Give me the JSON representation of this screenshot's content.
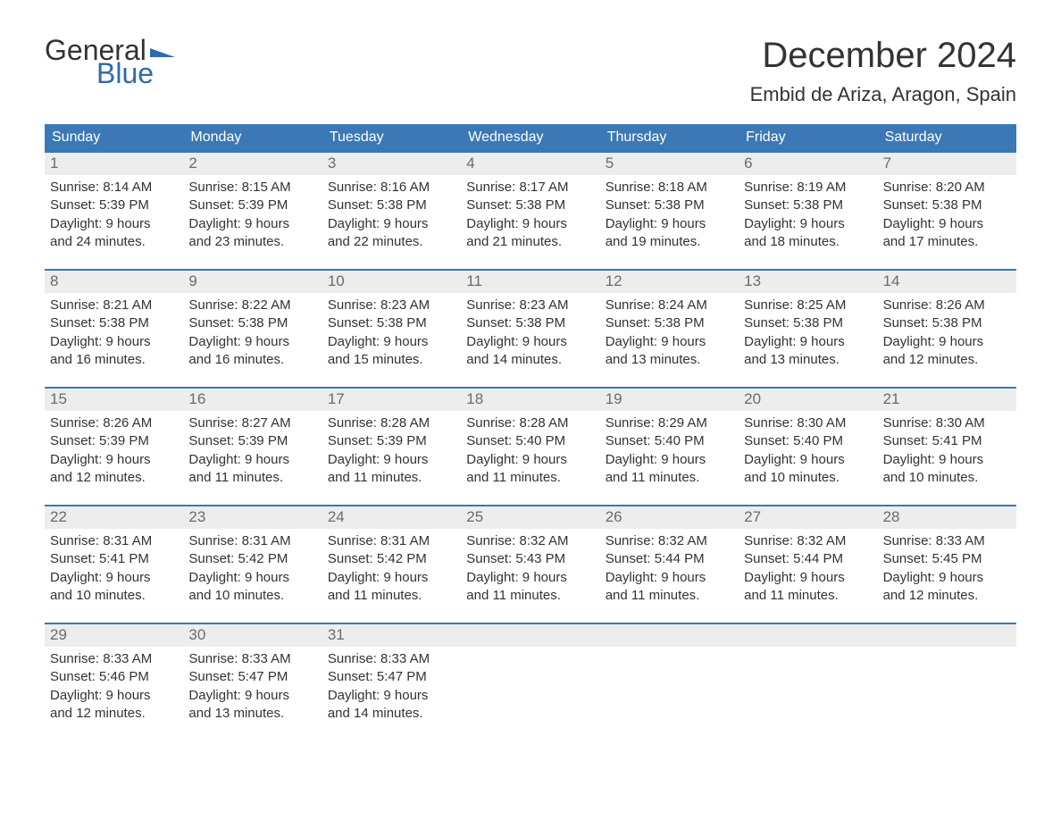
{
  "logo": {
    "part1": "General",
    "part2": "Blue"
  },
  "title": "December 2024",
  "location": "Embid de Ariza, Aragon, Spain",
  "colors": {
    "header_bg": "#3b78b5",
    "header_text": "#ffffff",
    "daynum_bg": "#ededed",
    "daynum_text": "#6b6b6b",
    "body_text": "#333333",
    "logo_blue": "#2f6ba8",
    "page_bg": "#ffffff",
    "row_border": "#3b78b5"
  },
  "weekdays": [
    "Sunday",
    "Monday",
    "Tuesday",
    "Wednesday",
    "Thursday",
    "Friday",
    "Saturday"
  ],
  "weeks": [
    [
      {
        "n": "1",
        "sunrise": "Sunrise: 8:14 AM",
        "sunset": "Sunset: 5:39 PM",
        "day1": "Daylight: 9 hours",
        "day2": "and 24 minutes."
      },
      {
        "n": "2",
        "sunrise": "Sunrise: 8:15 AM",
        "sunset": "Sunset: 5:39 PM",
        "day1": "Daylight: 9 hours",
        "day2": "and 23 minutes."
      },
      {
        "n": "3",
        "sunrise": "Sunrise: 8:16 AM",
        "sunset": "Sunset: 5:38 PM",
        "day1": "Daylight: 9 hours",
        "day2": "and 22 minutes."
      },
      {
        "n": "4",
        "sunrise": "Sunrise: 8:17 AM",
        "sunset": "Sunset: 5:38 PM",
        "day1": "Daylight: 9 hours",
        "day2": "and 21 minutes."
      },
      {
        "n": "5",
        "sunrise": "Sunrise: 8:18 AM",
        "sunset": "Sunset: 5:38 PM",
        "day1": "Daylight: 9 hours",
        "day2": "and 19 minutes."
      },
      {
        "n": "6",
        "sunrise": "Sunrise: 8:19 AM",
        "sunset": "Sunset: 5:38 PM",
        "day1": "Daylight: 9 hours",
        "day2": "and 18 minutes."
      },
      {
        "n": "7",
        "sunrise": "Sunrise: 8:20 AM",
        "sunset": "Sunset: 5:38 PM",
        "day1": "Daylight: 9 hours",
        "day2": "and 17 minutes."
      }
    ],
    [
      {
        "n": "8",
        "sunrise": "Sunrise: 8:21 AM",
        "sunset": "Sunset: 5:38 PM",
        "day1": "Daylight: 9 hours",
        "day2": "and 16 minutes."
      },
      {
        "n": "9",
        "sunrise": "Sunrise: 8:22 AM",
        "sunset": "Sunset: 5:38 PM",
        "day1": "Daylight: 9 hours",
        "day2": "and 16 minutes."
      },
      {
        "n": "10",
        "sunrise": "Sunrise: 8:23 AM",
        "sunset": "Sunset: 5:38 PM",
        "day1": "Daylight: 9 hours",
        "day2": "and 15 minutes."
      },
      {
        "n": "11",
        "sunrise": "Sunrise: 8:23 AM",
        "sunset": "Sunset: 5:38 PM",
        "day1": "Daylight: 9 hours",
        "day2": "and 14 minutes."
      },
      {
        "n": "12",
        "sunrise": "Sunrise: 8:24 AM",
        "sunset": "Sunset: 5:38 PM",
        "day1": "Daylight: 9 hours",
        "day2": "and 13 minutes."
      },
      {
        "n": "13",
        "sunrise": "Sunrise: 8:25 AM",
        "sunset": "Sunset: 5:38 PM",
        "day1": "Daylight: 9 hours",
        "day2": "and 13 minutes."
      },
      {
        "n": "14",
        "sunrise": "Sunrise: 8:26 AM",
        "sunset": "Sunset: 5:38 PM",
        "day1": "Daylight: 9 hours",
        "day2": "and 12 minutes."
      }
    ],
    [
      {
        "n": "15",
        "sunrise": "Sunrise: 8:26 AM",
        "sunset": "Sunset: 5:39 PM",
        "day1": "Daylight: 9 hours",
        "day2": "and 12 minutes."
      },
      {
        "n": "16",
        "sunrise": "Sunrise: 8:27 AM",
        "sunset": "Sunset: 5:39 PM",
        "day1": "Daylight: 9 hours",
        "day2": "and 11 minutes."
      },
      {
        "n": "17",
        "sunrise": "Sunrise: 8:28 AM",
        "sunset": "Sunset: 5:39 PM",
        "day1": "Daylight: 9 hours",
        "day2": "and 11 minutes."
      },
      {
        "n": "18",
        "sunrise": "Sunrise: 8:28 AM",
        "sunset": "Sunset: 5:40 PM",
        "day1": "Daylight: 9 hours",
        "day2": "and 11 minutes."
      },
      {
        "n": "19",
        "sunrise": "Sunrise: 8:29 AM",
        "sunset": "Sunset: 5:40 PM",
        "day1": "Daylight: 9 hours",
        "day2": "and 11 minutes."
      },
      {
        "n": "20",
        "sunrise": "Sunrise: 8:30 AM",
        "sunset": "Sunset: 5:40 PM",
        "day1": "Daylight: 9 hours",
        "day2": "and 10 minutes."
      },
      {
        "n": "21",
        "sunrise": "Sunrise: 8:30 AM",
        "sunset": "Sunset: 5:41 PM",
        "day1": "Daylight: 9 hours",
        "day2": "and 10 minutes."
      }
    ],
    [
      {
        "n": "22",
        "sunrise": "Sunrise: 8:31 AM",
        "sunset": "Sunset: 5:41 PM",
        "day1": "Daylight: 9 hours",
        "day2": "and 10 minutes."
      },
      {
        "n": "23",
        "sunrise": "Sunrise: 8:31 AM",
        "sunset": "Sunset: 5:42 PM",
        "day1": "Daylight: 9 hours",
        "day2": "and 10 minutes."
      },
      {
        "n": "24",
        "sunrise": "Sunrise: 8:31 AM",
        "sunset": "Sunset: 5:42 PM",
        "day1": "Daylight: 9 hours",
        "day2": "and 11 minutes."
      },
      {
        "n": "25",
        "sunrise": "Sunrise: 8:32 AM",
        "sunset": "Sunset: 5:43 PM",
        "day1": "Daylight: 9 hours",
        "day2": "and 11 minutes."
      },
      {
        "n": "26",
        "sunrise": "Sunrise: 8:32 AM",
        "sunset": "Sunset: 5:44 PM",
        "day1": "Daylight: 9 hours",
        "day2": "and 11 minutes."
      },
      {
        "n": "27",
        "sunrise": "Sunrise: 8:32 AM",
        "sunset": "Sunset: 5:44 PM",
        "day1": "Daylight: 9 hours",
        "day2": "and 11 minutes."
      },
      {
        "n": "28",
        "sunrise": "Sunrise: 8:33 AM",
        "sunset": "Sunset: 5:45 PM",
        "day1": "Daylight: 9 hours",
        "day2": "and 12 minutes."
      }
    ],
    [
      {
        "n": "29",
        "sunrise": "Sunrise: 8:33 AM",
        "sunset": "Sunset: 5:46 PM",
        "day1": "Daylight: 9 hours",
        "day2": "and 12 minutes."
      },
      {
        "n": "30",
        "sunrise": "Sunrise: 8:33 AM",
        "sunset": "Sunset: 5:47 PM",
        "day1": "Daylight: 9 hours",
        "day2": "and 13 minutes."
      },
      {
        "n": "31",
        "sunrise": "Sunrise: 8:33 AM",
        "sunset": "Sunset: 5:47 PM",
        "day1": "Daylight: 9 hours",
        "day2": "and 14 minutes."
      },
      null,
      null,
      null,
      null
    ]
  ]
}
